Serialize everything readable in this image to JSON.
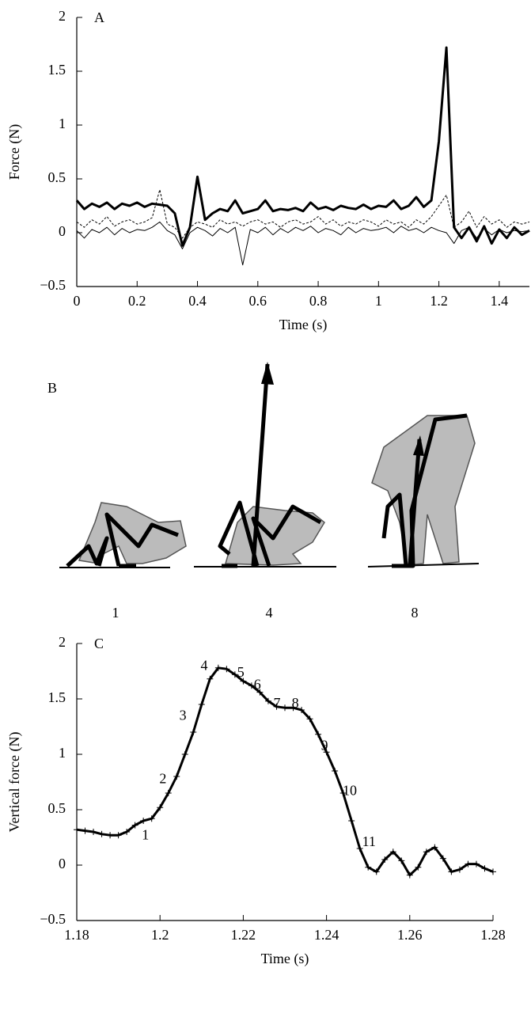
{
  "chart_data": [
    {
      "type": "line",
      "label": "A",
      "xlabel": "Time (s)",
      "ylabel": "Force (N)",
      "xlim": [
        0,
        1.5
      ],
      "xticks": [
        0,
        0.2,
        0.4,
        0.6,
        0.8,
        1,
        1.2,
        1.4
      ],
      "ylim": [
        -0.5,
        2
      ],
      "yticks": [
        {
          "value": -0.5,
          "label": "−0.5"
        },
        0,
        0.5,
        1,
        1.5,
        2
      ],
      "x": [
        0,
        0.025,
        0.05,
        0.075,
        0.1,
        0.125,
        0.15,
        0.175,
        0.2,
        0.225,
        0.25,
        0.275,
        0.3,
        0.325,
        0.35,
        0.375,
        0.4,
        0.425,
        0.45,
        0.475,
        0.5,
        0.525,
        0.55,
        0.575,
        0.6,
        0.625,
        0.65,
        0.675,
        0.7,
        0.725,
        0.75,
        0.775,
        0.8,
        0.825,
        0.85,
        0.875,
        0.9,
        0.925,
        0.95,
        0.975,
        1,
        1.025,
        1.05,
        1.075,
        1.1,
        1.125,
        1.15,
        1.175,
        1.2,
        1.225,
        1.25,
        1.275,
        1.3,
        1.325,
        1.35,
        1.375,
        1.4,
        1.425,
        1.45,
        1.475,
        1.5
      ],
      "series": [
        {
          "color": "#000000",
          "style": "bold",
          "values": [
            0.3,
            0.22,
            0.27,
            0.24,
            0.28,
            0.22,
            0.27,
            0.25,
            0.28,
            0.24,
            0.27,
            0.26,
            0.25,
            0.18,
            -0.12,
            0.05,
            0.52,
            0.12,
            0.18,
            0.22,
            0.2,
            0.3,
            0.18,
            0.2,
            0.22,
            0.3,
            0.2,
            0.22,
            0.21,
            0.23,
            0.2,
            0.28,
            0.22,
            0.24,
            0.21,
            0.25,
            0.23,
            0.22,
            0.26,
            0.22,
            0.25,
            0.24,
            0.3,
            0.22,
            0.25,
            0.33,
            0.24,
            0.3,
            0.85,
            1.72,
            0.05,
            -0.05,
            0.05,
            -0.08,
            0.06,
            -0.1,
            0.03,
            -0.05,
            0.05,
            -0.02,
            0.02
          ]
        },
        {
          "color": "#000000",
          "style": "dashed",
          "values": [
            0.1,
            0.05,
            0.12,
            0.08,
            0.15,
            0.06,
            0.1,
            0.12,
            0.08,
            0.1,
            0.14,
            0.4,
            0.08,
            0.05,
            -0.05,
            0.05,
            0.1,
            0.08,
            0.05,
            0.12,
            0.08,
            0.1,
            0.06,
            0.1,
            0.12,
            0.08,
            0.1,
            0.05,
            0.1,
            0.12,
            0.08,
            0.1,
            0.15,
            0.08,
            0.12,
            0.06,
            0.1,
            0.08,
            0.12,
            0.1,
            0.06,
            0.12,
            0.08,
            0.1,
            0.05,
            0.12,
            0.08,
            0.15,
            0.25,
            0.35,
            0.05,
            0.1,
            0.2,
            0.05,
            0.15,
            0.08,
            0.12,
            0.05,
            0.1,
            0.08,
            0.1
          ]
        },
        {
          "color": "#000000",
          "style": "thin",
          "values": [
            0.02,
            -0.05,
            0.03,
            0.0,
            0.05,
            -0.02,
            0.04,
            0.0,
            0.03,
            0.02,
            0.05,
            0.1,
            0.02,
            -0.02,
            -0.15,
            0.0,
            0.05,
            0.02,
            -0.03,
            0.04,
            0.0,
            0.05,
            -0.3,
            0.03,
            0.0,
            0.05,
            -0.02,
            0.04,
            0.0,
            0.05,
            0.02,
            0.06,
            0.0,
            0.04,
            0.02,
            -0.02,
            0.05,
            0.0,
            0.04,
            0.02,
            0.03,
            0.05,
            0.0,
            0.06,
            0.02,
            0.04,
            0.0,
            0.05,
            0.02,
            0.0,
            -0.1,
            0.02,
            0.05,
            -0.05,
            0.04,
            -0.02,
            0.03,
            0.0,
            0.02,
            0.01,
            0.02
          ]
        }
      ]
    },
    {
      "type": "line",
      "label": "C",
      "xlabel": "Time (s)",
      "ylabel": "Vertical force (N)",
      "marker": "cross",
      "xlim": [
        1.18,
        1.28
      ],
      "xticks": [
        1.18,
        1.2,
        1.22,
        1.24,
        1.26,
        1.28
      ],
      "ylim": [
        -0.5,
        2
      ],
      "yticks": [
        {
          "value": -0.5,
          "label": "−0.5"
        },
        0,
        0.5,
        1,
        1.5,
        2
      ],
      "x": [
        1.18,
        1.182,
        1.184,
        1.186,
        1.188,
        1.19,
        1.192,
        1.194,
        1.196,
        1.198,
        1.2,
        1.202,
        1.204,
        1.206,
        1.208,
        1.21,
        1.212,
        1.214,
        1.216,
        1.218,
        1.22,
        1.222,
        1.224,
        1.226,
        1.228,
        1.23,
        1.232,
        1.234,
        1.236,
        1.238,
        1.24,
        1.242,
        1.244,
        1.246,
        1.248,
        1.25,
        1.252,
        1.254,
        1.256,
        1.258,
        1.26,
        1.262,
        1.264,
        1.266,
        1.268,
        1.27,
        1.272,
        1.274,
        1.276,
        1.278,
        1.28
      ],
      "series": [
        {
          "color": "#000000",
          "style": "bold",
          "values": [
            0.32,
            0.31,
            0.3,
            0.28,
            0.27,
            0.27,
            0.3,
            0.36,
            0.4,
            0.42,
            0.52,
            0.65,
            0.8,
            1.0,
            1.2,
            1.45,
            1.68,
            1.78,
            1.77,
            1.72,
            1.66,
            1.62,
            1.56,
            1.48,
            1.43,
            1.42,
            1.42,
            1.4,
            1.32,
            1.18,
            1.02,
            0.85,
            0.65,
            0.4,
            0.15,
            -0.02,
            -0.06,
            0.05,
            0.12,
            0.04,
            -0.09,
            -0.02,
            0.12,
            0.16,
            0.06,
            -0.06,
            -0.04,
            0.01,
            0.01,
            -0.03,
            -0.06
          ]
        }
      ],
      "annotations": [
        {
          "text": "1",
          "x": 1.1965,
          "y": 0.26
        },
        {
          "text": "2",
          "x": 1.2007,
          "y": 0.77
        },
        {
          "text": "3",
          "x": 1.2055,
          "y": 1.34
        },
        {
          "text": "4",
          "x": 1.2106,
          "y": 1.79
        },
        {
          "text": "5",
          "x": 1.2194,
          "y": 1.73
        },
        {
          "text": "6",
          "x": 1.2234,
          "y": 1.62
        },
        {
          "text": "7",
          "x": 1.2281,
          "y": 1.45
        },
        {
          "text": "8",
          "x": 1.2325,
          "y": 1.45
        },
        {
          "text": "9",
          "x": 1.2395,
          "y": 1.07
        },
        {
          "text": "10",
          "x": 1.2456,
          "y": 0.66
        },
        {
          "text": "11",
          "x": 1.2502,
          "y": 0.2
        }
      ]
    }
  ],
  "panel_b": {
    "label": "B",
    "frames": [
      "1",
      "4",
      "8"
    ]
  }
}
